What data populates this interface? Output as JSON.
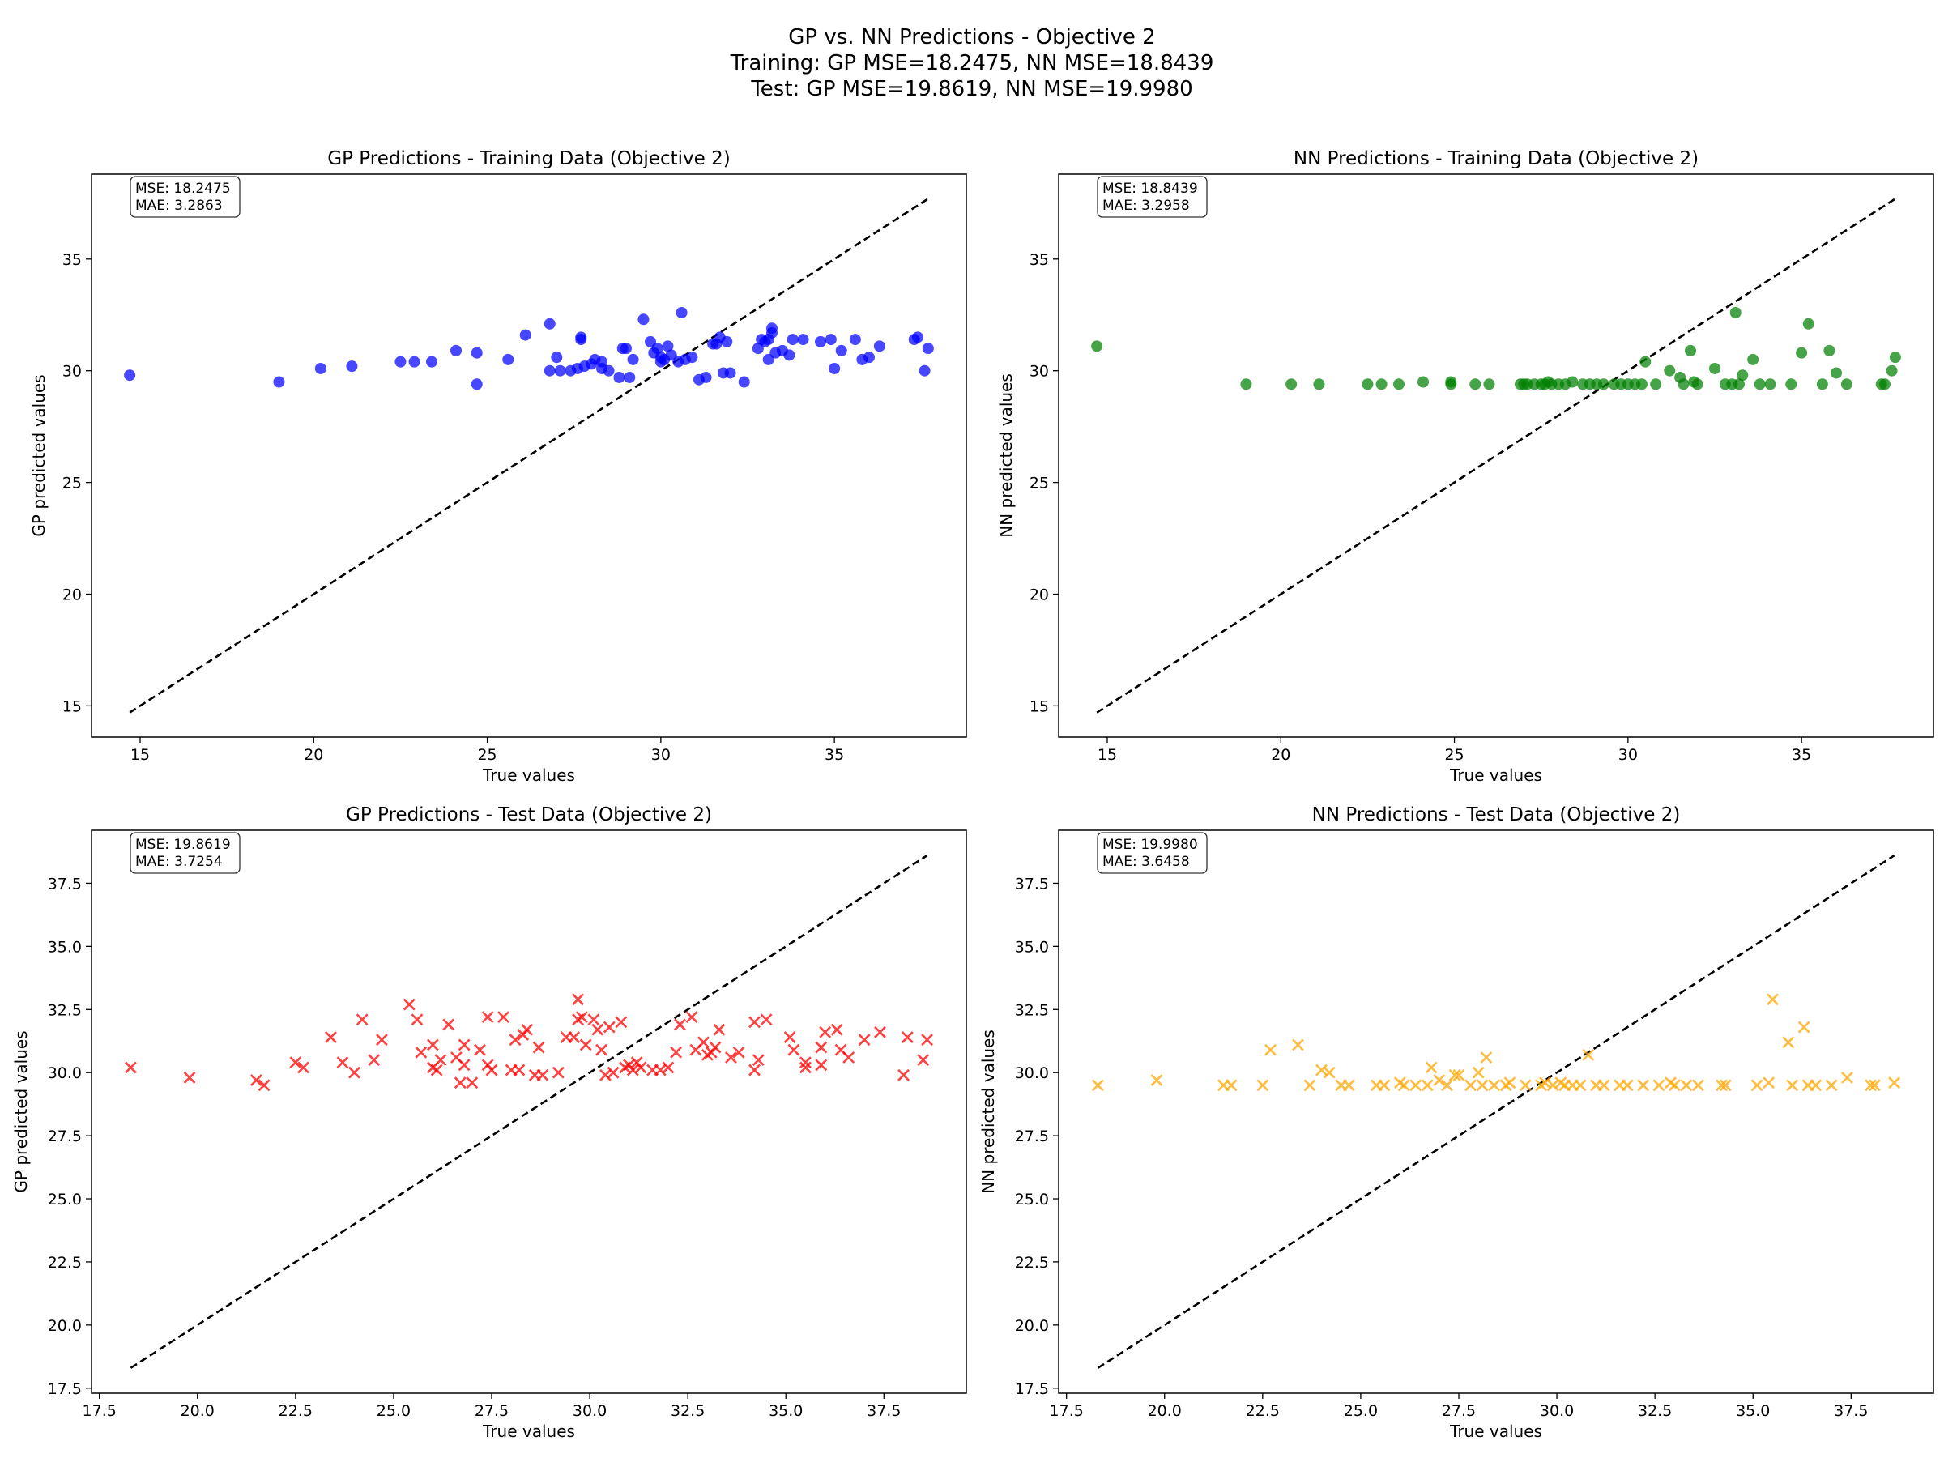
{
  "suptitle": {
    "line1": "GP vs. NN Predictions - Objective 2",
    "line2": "Training: GP MSE=18.2475, NN MSE=18.8439",
    "line3": "Test: GP MSE=19.8619, NN MSE=19.9980"
  },
  "chart_data": [
    {
      "type": "scatter",
      "title": "GP Predictions - Training Data (Objective 2)",
      "xlabel": "True values",
      "ylabel": "GP predicted values",
      "marker": "circle",
      "color": "#0000ff",
      "xlim": [
        13.6,
        38.8
      ],
      "ylim": [
        13.6,
        38.8
      ],
      "xticks": [
        15,
        20,
        25,
        30,
        35
      ],
      "yticks": [
        15,
        20,
        25,
        30,
        35
      ],
      "tick_labels": [
        "15",
        "20",
        "25",
        "30",
        "35"
      ],
      "identity_line": [
        14.7,
        37.7
      ],
      "stats_box": [
        "MSE: 18.2475",
        "MAE: 3.2863"
      ],
      "points": [
        [
          14.7,
          29.8
        ],
        [
          19.0,
          29.5
        ],
        [
          20.2,
          30.1
        ],
        [
          21.1,
          30.2
        ],
        [
          22.5,
          30.4
        ],
        [
          22.9,
          30.4
        ],
        [
          23.4,
          30.4
        ],
        [
          24.1,
          30.9
        ],
        [
          24.7,
          30.8
        ],
        [
          24.7,
          29.4
        ],
        [
          25.6,
          30.5
        ],
        [
          26.1,
          31.6
        ],
        [
          26.8,
          32.1
        ],
        [
          26.8,
          30.0
        ],
        [
          27.0,
          30.6
        ],
        [
          27.1,
          30.0
        ],
        [
          27.4,
          30.0
        ],
        [
          27.6,
          30.1
        ],
        [
          27.7,
          31.5
        ],
        [
          27.7,
          31.4
        ],
        [
          27.8,
          30.2
        ],
        [
          28.0,
          30.3
        ],
        [
          28.1,
          30.5
        ],
        [
          28.3,
          30.4
        ],
        [
          28.3,
          30.1
        ],
        [
          28.5,
          30.0
        ],
        [
          28.8,
          29.7
        ],
        [
          28.9,
          31.0
        ],
        [
          29.0,
          31.0
        ],
        [
          29.1,
          29.7
        ],
        [
          29.2,
          30.5
        ],
        [
          29.5,
          32.3
        ],
        [
          29.7,
          31.3
        ],
        [
          29.8,
          30.8
        ],
        [
          29.9,
          31.0
        ],
        [
          30.0,
          30.4
        ],
        [
          30.0,
          30.6
        ],
        [
          30.1,
          30.5
        ],
        [
          30.2,
          31.1
        ],
        [
          30.3,
          30.7
        ],
        [
          30.5,
          30.4
        ],
        [
          30.6,
          32.6
        ],
        [
          30.7,
          30.5
        ],
        [
          30.9,
          30.6
        ],
        [
          31.1,
          29.6
        ],
        [
          31.3,
          29.7
        ],
        [
          31.5,
          31.2
        ],
        [
          31.6,
          31.2
        ],
        [
          31.7,
          31.5
        ],
        [
          31.8,
          29.9
        ],
        [
          31.9,
          31.3
        ],
        [
          32.0,
          29.9
        ],
        [
          32.4,
          29.5
        ],
        [
          32.8,
          31.0
        ],
        [
          32.9,
          31.4
        ],
        [
          33.0,
          31.3
        ],
        [
          33.1,
          31.4
        ],
        [
          33.1,
          30.5
        ],
        [
          33.2,
          31.7
        ],
        [
          33.2,
          31.9
        ],
        [
          33.3,
          30.8
        ],
        [
          33.5,
          30.9
        ],
        [
          33.7,
          30.7
        ],
        [
          33.8,
          31.4
        ],
        [
          34.1,
          31.4
        ],
        [
          34.6,
          31.3
        ],
        [
          34.9,
          31.4
        ],
        [
          35.0,
          30.1
        ],
        [
          35.2,
          30.9
        ],
        [
          35.6,
          31.4
        ],
        [
          35.8,
          30.5
        ],
        [
          36.0,
          30.6
        ],
        [
          36.3,
          31.1
        ],
        [
          37.3,
          31.4
        ],
        [
          37.4,
          31.5
        ],
        [
          37.6,
          30.0
        ],
        [
          37.7,
          31.0
        ]
      ]
    },
    {
      "type": "scatter",
      "title": "NN Predictions - Training Data (Objective 2)",
      "xlabel": "True values",
      "ylabel": "NN predicted values",
      "marker": "circle",
      "color": "#008000",
      "xlim": [
        13.6,
        38.8
      ],
      "ylim": [
        13.6,
        38.8
      ],
      "xticks": [
        15,
        20,
        25,
        30,
        35
      ],
      "yticks": [
        15,
        20,
        25,
        30,
        35
      ],
      "tick_labels": [
        "15",
        "20",
        "25",
        "30",
        "35"
      ],
      "identity_line": [
        14.7,
        37.7
      ],
      "stats_box": [
        "MSE: 18.8439",
        "MAE: 3.2958"
      ],
      "points": [
        [
          14.7,
          31.1
        ],
        [
          19.0,
          29.4
        ],
        [
          20.3,
          29.4
        ],
        [
          21.1,
          29.4
        ],
        [
          22.5,
          29.4
        ],
        [
          22.9,
          29.4
        ],
        [
          23.4,
          29.4
        ],
        [
          24.1,
          29.5
        ],
        [
          24.9,
          29.4
        ],
        [
          24.9,
          29.5
        ],
        [
          25.6,
          29.4
        ],
        [
          26.0,
          29.4
        ],
        [
          26.9,
          29.4
        ],
        [
          27.0,
          29.4
        ],
        [
          27.1,
          29.4
        ],
        [
          27.3,
          29.4
        ],
        [
          27.5,
          29.4
        ],
        [
          27.6,
          29.4
        ],
        [
          27.7,
          29.5
        ],
        [
          27.8,
          29.4
        ],
        [
          28.0,
          29.4
        ],
        [
          28.2,
          29.4
        ],
        [
          28.4,
          29.5
        ],
        [
          28.7,
          29.4
        ],
        [
          28.9,
          29.4
        ],
        [
          29.1,
          29.4
        ],
        [
          29.3,
          29.4
        ],
        [
          29.6,
          29.4
        ],
        [
          29.8,
          29.4
        ],
        [
          30.0,
          29.4
        ],
        [
          30.2,
          29.4
        ],
        [
          30.4,
          29.4
        ],
        [
          30.5,
          30.4
        ],
        [
          30.8,
          29.4
        ],
        [
          31.2,
          30.0
        ],
        [
          31.5,
          29.7
        ],
        [
          31.6,
          29.4
        ],
        [
          31.8,
          30.9
        ],
        [
          31.9,
          29.5
        ],
        [
          32.0,
          29.4
        ],
        [
          32.5,
          30.1
        ],
        [
          32.8,
          29.4
        ],
        [
          33.0,
          29.4
        ],
        [
          33.1,
          32.6
        ],
        [
          33.2,
          29.4
        ],
        [
          33.3,
          29.8
        ],
        [
          33.6,
          30.5
        ],
        [
          33.8,
          29.4
        ],
        [
          34.1,
          29.4
        ],
        [
          34.7,
          29.4
        ],
        [
          35.0,
          30.8
        ],
        [
          35.2,
          32.1
        ],
        [
          35.6,
          29.4
        ],
        [
          35.8,
          30.9
        ],
        [
          36.0,
          29.9
        ],
        [
          36.3,
          29.4
        ],
        [
          37.3,
          29.4
        ],
        [
          37.4,
          29.4
        ],
        [
          37.6,
          30.0
        ],
        [
          37.7,
          30.6
        ]
      ]
    },
    {
      "type": "scatter",
      "title": "GP Predictions - Test Data (Objective 2)",
      "xlabel": "True values",
      "ylabel": "GP predicted values",
      "marker": "x",
      "color": "#ff0000",
      "xlim": [
        17.3,
        39.6
      ],
      "ylim": [
        17.3,
        39.6
      ],
      "xticks": [
        17.5,
        20.0,
        22.5,
        25.0,
        27.5,
        30.0,
        32.5,
        35.0,
        37.5
      ],
      "yticks": [
        17.5,
        20.0,
        22.5,
        25.0,
        27.5,
        30.0,
        32.5,
        35.0,
        37.5
      ],
      "tick_labels": [
        "17.5",
        "20.0",
        "22.5",
        "25.0",
        "27.5",
        "30.0",
        "32.5",
        "35.0",
        "37.5"
      ],
      "identity_line": [
        18.3,
        38.6
      ],
      "stats_box": [
        "MSE: 19.8619",
        "MAE: 3.7254"
      ],
      "points": [
        [
          18.3,
          30.2
        ],
        [
          19.8,
          29.8
        ],
        [
          21.5,
          29.7
        ],
        [
          21.7,
          29.5
        ],
        [
          22.5,
          30.4
        ],
        [
          22.7,
          30.2
        ],
        [
          23.4,
          31.4
        ],
        [
          23.7,
          30.4
        ],
        [
          24.0,
          30.0
        ],
        [
          24.2,
          32.1
        ],
        [
          24.5,
          30.5
        ],
        [
          24.7,
          31.3
        ],
        [
          25.4,
          32.7
        ],
        [
          25.6,
          32.1
        ],
        [
          25.7,
          30.8
        ],
        [
          26.0,
          31.1
        ],
        [
          26.0,
          30.2
        ],
        [
          26.1,
          30.1
        ],
        [
          26.2,
          30.5
        ],
        [
          26.4,
          31.9
        ],
        [
          26.6,
          30.6
        ],
        [
          26.7,
          29.6
        ],
        [
          26.8,
          31.1
        ],
        [
          26.8,
          30.3
        ],
        [
          27.0,
          29.6
        ],
        [
          27.2,
          30.9
        ],
        [
          27.4,
          30.3
        ],
        [
          27.4,
          32.2
        ],
        [
          27.5,
          30.1
        ],
        [
          27.8,
          32.2
        ],
        [
          28.0,
          30.1
        ],
        [
          28.1,
          31.3
        ],
        [
          28.2,
          30.1
        ],
        [
          28.3,
          31.5
        ],
        [
          28.4,
          31.7
        ],
        [
          28.6,
          29.9
        ],
        [
          28.7,
          31.0
        ],
        [
          28.8,
          29.9
        ],
        [
          29.2,
          30.0
        ],
        [
          29.4,
          31.4
        ],
        [
          29.6,
          31.4
        ],
        [
          29.7,
          32.9
        ],
        [
          29.7,
          32.1
        ],
        [
          29.8,
          32.2
        ],
        [
          29.9,
          31.1
        ],
        [
          30.1,
          32.1
        ],
        [
          30.2,
          31.7
        ],
        [
          30.3,
          30.9
        ],
        [
          30.4,
          29.9
        ],
        [
          30.5,
          31.8
        ],
        [
          30.6,
          30.0
        ],
        [
          30.8,
          32.0
        ],
        [
          30.9,
          30.2
        ],
        [
          31.0,
          30.3
        ],
        [
          31.1,
          30.1
        ],
        [
          31.2,
          30.4
        ],
        [
          31.3,
          30.2
        ],
        [
          31.6,
          30.1
        ],
        [
          31.8,
          30.1
        ],
        [
          32.0,
          30.2
        ],
        [
          32.2,
          30.8
        ],
        [
          32.3,
          31.9
        ],
        [
          32.6,
          32.2
        ],
        [
          32.7,
          30.9
        ],
        [
          32.9,
          31.2
        ],
        [
          33.0,
          30.7
        ],
        [
          33.1,
          30.8
        ],
        [
          33.2,
          31.0
        ],
        [
          33.3,
          31.7
        ],
        [
          33.6,
          30.6
        ],
        [
          33.8,
          30.8
        ],
        [
          34.2,
          32.0
        ],
        [
          34.2,
          30.1
        ],
        [
          34.3,
          30.5
        ],
        [
          34.5,
          32.1
        ],
        [
          35.1,
          31.4
        ],
        [
          35.2,
          30.9
        ],
        [
          35.5,
          30.4
        ],
        [
          35.5,
          30.2
        ],
        [
          35.9,
          30.3
        ],
        [
          35.9,
          31.0
        ],
        [
          36.0,
          31.6
        ],
        [
          36.3,
          31.7
        ],
        [
          36.4,
          30.9
        ],
        [
          36.6,
          30.6
        ],
        [
          37.0,
          31.3
        ],
        [
          37.4,
          31.6
        ],
        [
          38.0,
          29.9
        ],
        [
          38.1,
          31.4
        ],
        [
          38.5,
          30.5
        ],
        [
          38.6,
          31.3
        ]
      ]
    },
    {
      "type": "scatter",
      "title": "NN Predictions - Test Data (Objective 2)",
      "xlabel": "True values",
      "ylabel": "NN predicted values",
      "marker": "x",
      "color": "#ffa500",
      "xlim": [
        17.3,
        39.6
      ],
      "ylim": [
        17.3,
        39.6
      ],
      "xticks": [
        17.5,
        20.0,
        22.5,
        25.0,
        27.5,
        30.0,
        32.5,
        35.0,
        37.5
      ],
      "yticks": [
        17.5,
        20.0,
        22.5,
        25.0,
        27.5,
        30.0,
        32.5,
        35.0,
        37.5
      ],
      "tick_labels": [
        "17.5",
        "20.0",
        "22.5",
        "25.0",
        "27.5",
        "30.0",
        "32.5",
        "35.0",
        "37.5"
      ],
      "identity_line": [
        18.3,
        38.6
      ],
      "stats_box": [
        "MSE: 19.9980",
        "MAE: 3.6458"
      ],
      "points": [
        [
          18.3,
          29.5
        ],
        [
          19.8,
          29.7
        ],
        [
          21.5,
          29.5
        ],
        [
          21.7,
          29.5
        ],
        [
          22.5,
          29.5
        ],
        [
          22.7,
          30.9
        ],
        [
          23.4,
          31.1
        ],
        [
          23.7,
          29.5
        ],
        [
          24.0,
          30.1
        ],
        [
          24.2,
          30.0
        ],
        [
          24.5,
          29.5
        ],
        [
          24.7,
          29.5
        ],
        [
          25.4,
          29.5
        ],
        [
          25.6,
          29.5
        ],
        [
          26.0,
          29.6
        ],
        [
          26.1,
          29.5
        ],
        [
          26.4,
          29.5
        ],
        [
          26.7,
          29.5
        ],
        [
          26.8,
          30.2
        ],
        [
          27.0,
          29.7
        ],
        [
          27.2,
          29.5
        ],
        [
          27.4,
          29.9
        ],
        [
          27.5,
          29.9
        ],
        [
          27.8,
          29.5
        ],
        [
          28.0,
          30.0
        ],
        [
          28.1,
          29.5
        ],
        [
          28.2,
          30.6
        ],
        [
          28.4,
          29.5
        ],
        [
          28.7,
          29.5
        ],
        [
          28.8,
          29.6
        ],
        [
          29.2,
          29.5
        ],
        [
          29.6,
          29.5
        ],
        [
          29.7,
          29.6
        ],
        [
          29.9,
          29.5
        ],
        [
          30.1,
          29.6
        ],
        [
          30.2,
          29.5
        ],
        [
          30.4,
          29.5
        ],
        [
          30.6,
          29.5
        ],
        [
          30.8,
          30.7
        ],
        [
          31.0,
          29.5
        ],
        [
          31.2,
          29.5
        ],
        [
          31.6,
          29.5
        ],
        [
          31.8,
          29.5
        ],
        [
          32.2,
          29.5
        ],
        [
          32.6,
          29.5
        ],
        [
          32.9,
          29.6
        ],
        [
          33.0,
          29.5
        ],
        [
          33.3,
          29.5
        ],
        [
          33.6,
          29.5
        ],
        [
          34.2,
          29.5
        ],
        [
          34.3,
          29.5
        ],
        [
          35.1,
          29.5
        ],
        [
          35.4,
          29.6
        ],
        [
          35.5,
          32.9
        ],
        [
          35.9,
          31.2
        ],
        [
          36.0,
          29.5
        ],
        [
          36.3,
          31.8
        ],
        [
          36.4,
          29.5
        ],
        [
          36.6,
          29.5
        ],
        [
          37.0,
          29.5
        ],
        [
          37.4,
          29.8
        ],
        [
          38.0,
          29.5
        ],
        [
          38.1,
          29.5
        ],
        [
          38.6,
          29.6
        ]
      ]
    }
  ]
}
